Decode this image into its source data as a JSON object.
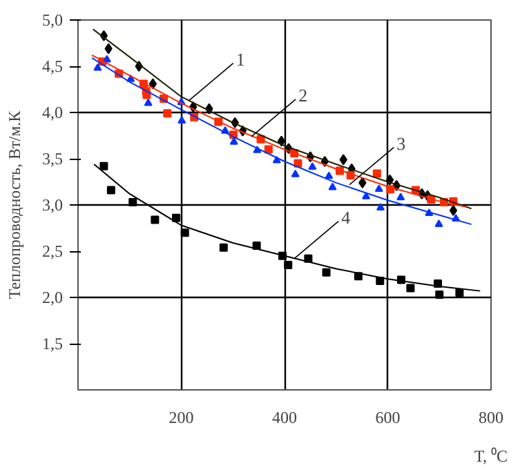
{
  "chart_data": {
    "type": "scatter",
    "xlabel": "Т, ⁰С",
    "ylabel": "Теплопроводность, Вт/м.К",
    "xlim": [
      0,
      800
    ],
    "ylim": [
      1.0,
      5.0
    ],
    "xticks": [
      200,
      400,
      600,
      800
    ],
    "yticks": [
      {
        "value": 1.5,
        "label": "1,5"
      },
      {
        "value": 2.0,
        "label": "2,0"
      },
      {
        "value": 2.5,
        "label": "2,5"
      },
      {
        "value": 3.0,
        "label": "3,0"
      },
      {
        "value": 3.5,
        "label": "3,5"
      },
      {
        "value": 4.0,
        "label": "4,0"
      },
      {
        "value": 4.5,
        "label": "4,5"
      },
      {
        "value": 5.0,
        "label": "5,0"
      }
    ],
    "grid": true,
    "series": [
      {
        "marker": "diamond",
        "color": "#000000",
        "x": [
          50,
          59,
          118,
          145,
          223,
          254,
          304,
          319,
          394,
          408,
          450,
          478,
          514,
          530,
          551,
          604,
          617,
          666,
          677,
          727
        ],
        "values": [
          4.83,
          4.69,
          4.5,
          4.31,
          4.06,
          4.04,
          3.89,
          3.8,
          3.69,
          3.61,
          3.52,
          3.47,
          3.49,
          3.39,
          3.24,
          3.27,
          3.21,
          3.12,
          3.1,
          2.94
        ]
      },
      {
        "marker": "square",
        "color": "#ff2a00",
        "x": [
          47,
          79,
          127,
          132,
          133,
          166,
          173,
          225,
          272,
          301,
          354,
          369,
          419,
          426,
          507,
          528,
          579,
          605,
          654,
          684,
          709,
          727
        ],
        "values": [
          4.55,
          4.42,
          4.31,
          4.23,
          4.19,
          4.15,
          3.99,
          3.95,
          3.9,
          3.76,
          3.71,
          3.6,
          3.56,
          3.45,
          3.37,
          3.32,
          3.34,
          3.17,
          3.16,
          3.06,
          3.03,
          3.04
        ]
      },
      {
        "marker": "triangle",
        "color": "#0033ff",
        "x": [
          38,
          56,
          102,
          136,
          200,
          201,
          285,
          302,
          347,
          385,
          421,
          454,
          486,
          493,
          558,
          583,
          586,
          625,
          680,
          699,
          732
        ],
        "values": [
          4.48,
          4.57,
          4.36,
          4.1,
          4.11,
          3.91,
          3.8,
          3.68,
          3.59,
          3.48,
          3.33,
          3.41,
          3.31,
          3.19,
          3.09,
          3.17,
          2.97,
          3.08,
          2.91,
          2.79,
          2.85
        ]
      },
      {
        "marker": "square",
        "color": "#000000",
        "x": [
          50,
          64,
          106,
          149,
          190,
          207,
          282,
          346,
          396,
          407,
          446,
          481,
          543,
          585,
          626,
          644,
          697,
          700,
          739
        ],
        "values": [
          3.42,
          3.16,
          3.03,
          2.84,
          2.86,
          2.7,
          2.54,
          2.56,
          2.45,
          2.35,
          2.42,
          2.27,
          2.23,
          2.18,
          2.19,
          2.1,
          2.15,
          2.03,
          2.05
        ]
      },
      {
        "type": "line",
        "color": "#222200",
        "x": [
          29,
          100,
          200,
          300,
          400,
          500,
          600,
          700,
          762
        ],
        "values": [
          4.9,
          4.6,
          4.17,
          3.89,
          3.64,
          3.44,
          3.25,
          3.08,
          2.96
        ]
      },
      {
        "type": "line",
        "color": "#ff2a00",
        "x": [
          27,
          100,
          200,
          300,
          400,
          500,
          600,
          700,
          751
        ],
        "values": [
          4.62,
          4.4,
          4.1,
          3.83,
          3.6,
          3.39,
          3.2,
          3.04,
          2.98
        ]
      },
      {
        "type": "line",
        "color": "#0033ff",
        "x": [
          27,
          100,
          200,
          300,
          400,
          500,
          600,
          700,
          762
        ],
        "values": [
          4.59,
          4.33,
          4.03,
          3.74,
          3.47,
          3.24,
          3.05,
          2.89,
          2.79
        ]
      },
      {
        "type": "line",
        "color": "#000000",
        "x": [
          31,
          100,
          200,
          300,
          400,
          500,
          600,
          700,
          779
        ],
        "values": [
          3.44,
          3.12,
          2.78,
          2.59,
          2.45,
          2.31,
          2.2,
          2.12,
          2.07
        ]
      }
    ],
    "annotations": [
      {
        "text": "1",
        "x": 215,
        "y": 4.13
      },
      {
        "text": "2",
        "x": 336,
        "y": 3.74
      },
      {
        "text": "3",
        "x": 526,
        "y": 3.22
      },
      {
        "text": "4",
        "x": 419,
        "y": 2.42
      }
    ]
  }
}
